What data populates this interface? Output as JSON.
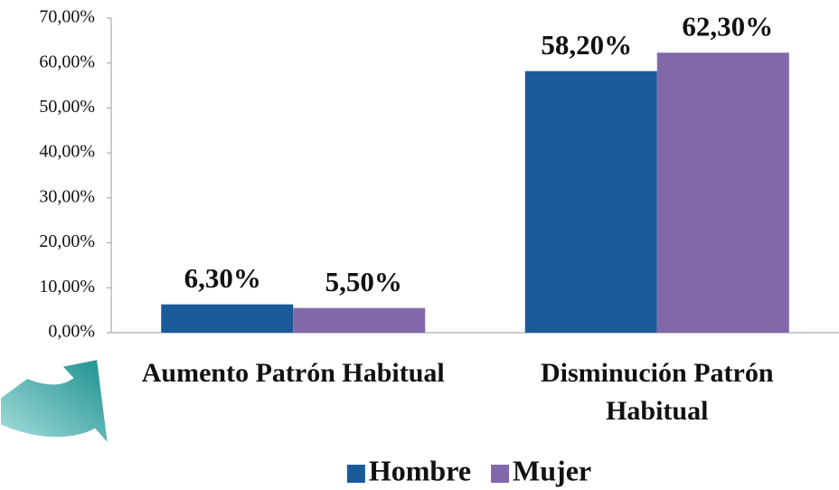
{
  "chart_data": {
    "type": "bar",
    "categories": [
      "Aumento Patrón Habitual",
      "Disminución Patrón Habitual"
    ],
    "series": [
      {
        "name": "Hombre",
        "color": "#1b5a99",
        "values": [
          6.3,
          58.2
        ],
        "value_labels": [
          "6,30%",
          "58,20%"
        ]
      },
      {
        "name": "Mujer",
        "color": "#8169a9",
        "values": [
          5.5,
          62.3
        ],
        "value_labels": [
          "5,50%",
          "62,30%"
        ]
      }
    ],
    "ylim": [
      0,
      70
    ],
    "yticks": [
      {
        "value": 0,
        "label": "0,00%"
      },
      {
        "value": 10,
        "label": "10,00%"
      },
      {
        "value": 20,
        "label": "20,00%"
      },
      {
        "value": 30,
        "label": "30,00%"
      },
      {
        "value": 40,
        "label": "40,00%"
      },
      {
        "value": 50,
        "label": "50,00%"
      },
      {
        "value": 60,
        "label": "60,00%"
      },
      {
        "value": 70,
        "label": "70,00%"
      }
    ],
    "legend": "bottom"
  }
}
